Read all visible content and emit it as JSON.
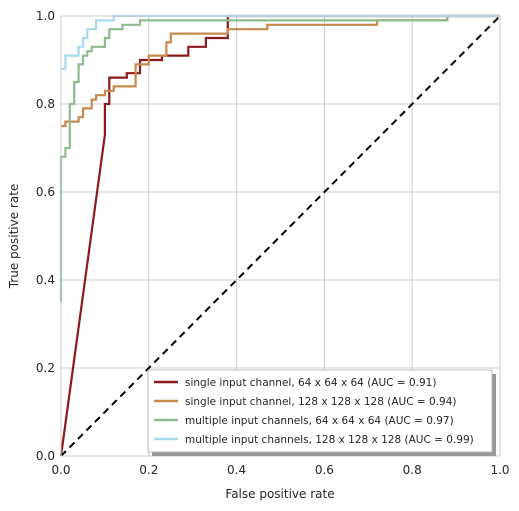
{
  "chart_data": {
    "type": "line",
    "xlabel": "False positive rate",
    "ylabel": "True positive rate",
    "xlim": [
      0,
      1
    ],
    "ylim": [
      0,
      1
    ],
    "xticks": [
      "0.0",
      "0.2",
      "0.4",
      "0.6",
      "0.8",
      "1.0"
    ],
    "yticks": [
      "0.0",
      "0.2",
      "0.4",
      "0.6",
      "0.8",
      "1.0"
    ],
    "grid": true,
    "legend_position": "bottom-right",
    "diagonal": {
      "style": "dashed",
      "color": "#000000",
      "points": [
        [
          0,
          0
        ],
        [
          1,
          1
        ]
      ]
    },
    "series": [
      {
        "name": "single input channel, 64 x 64 x 64 (AUC = 0.91)",
        "color": "#8b1a1a",
        "points": [
          [
            0,
            0
          ],
          [
            0.1,
            0.73
          ],
          [
            0.1,
            0.8
          ],
          [
            0.11,
            0.8
          ],
          [
            0.11,
            0.86
          ],
          [
            0.15,
            0.86
          ],
          [
            0.15,
            0.87
          ],
          [
            0.18,
            0.87
          ],
          [
            0.18,
            0.9
          ],
          [
            0.23,
            0.9
          ],
          [
            0.23,
            0.91
          ],
          [
            0.29,
            0.91
          ],
          [
            0.29,
            0.93
          ],
          [
            0.33,
            0.93
          ],
          [
            0.33,
            0.95
          ],
          [
            0.38,
            0.95
          ],
          [
            0.38,
            1.0
          ],
          [
            1.0,
            1.0
          ]
        ]
      },
      {
        "name": "single input channel, 128 x 128 x 128 (AUC = 0.94)",
        "color": "#c58a4c",
        "points": [
          [
            0,
            0.75
          ],
          [
            0.01,
            0.75
          ],
          [
            0.01,
            0.76
          ],
          [
            0.04,
            0.76
          ],
          [
            0.04,
            0.77
          ],
          [
            0.05,
            0.77
          ],
          [
            0.05,
            0.79
          ],
          [
            0.07,
            0.79
          ],
          [
            0.07,
            0.81
          ],
          [
            0.08,
            0.81
          ],
          [
            0.08,
            0.82
          ],
          [
            0.1,
            0.82
          ],
          [
            0.1,
            0.83
          ],
          [
            0.12,
            0.83
          ],
          [
            0.12,
            0.84
          ],
          [
            0.17,
            0.84
          ],
          [
            0.17,
            0.89
          ],
          [
            0.2,
            0.89
          ],
          [
            0.2,
            0.91
          ],
          [
            0.24,
            0.91
          ],
          [
            0.24,
            0.94
          ],
          [
            0.25,
            0.94
          ],
          [
            0.25,
            0.96
          ],
          [
            0.38,
            0.96
          ],
          [
            0.38,
            0.97
          ],
          [
            0.47,
            0.97
          ],
          [
            0.47,
            0.98
          ],
          [
            0.72,
            0.98
          ],
          [
            0.72,
            0.99
          ],
          [
            0.88,
            0.99
          ],
          [
            0.88,
            1.0
          ],
          [
            1.0,
            1.0
          ]
        ]
      },
      {
        "name": "multiple input channels, 64 x 64 x 64 (AUC = 0.97)",
        "color": "#8fbc8f",
        "points": [
          [
            0,
            0.35
          ],
          [
            0,
            0.68
          ],
          [
            0.01,
            0.68
          ],
          [
            0.01,
            0.7
          ],
          [
            0.02,
            0.7
          ],
          [
            0.02,
            0.8
          ],
          [
            0.03,
            0.8
          ],
          [
            0.03,
            0.85
          ],
          [
            0.04,
            0.85
          ],
          [
            0.04,
            0.89
          ],
          [
            0.05,
            0.89
          ],
          [
            0.05,
            0.91
          ],
          [
            0.06,
            0.91
          ],
          [
            0.06,
            0.92
          ],
          [
            0.07,
            0.92
          ],
          [
            0.07,
            0.93
          ],
          [
            0.1,
            0.93
          ],
          [
            0.1,
            0.95
          ],
          [
            0.11,
            0.95
          ],
          [
            0.11,
            0.97
          ],
          [
            0.14,
            0.97
          ],
          [
            0.14,
            0.98
          ],
          [
            0.18,
            0.98
          ],
          [
            0.18,
            0.99
          ],
          [
            0.88,
            0.99
          ],
          [
            0.88,
            1.0
          ],
          [
            1.0,
            1.0
          ]
        ]
      },
      {
        "name": "multiple input channels, 128 x 128 x 128 (AUC = 0.99)",
        "color": "#a6d8f0",
        "points": [
          [
            0,
            0.88
          ],
          [
            0.01,
            0.88
          ],
          [
            0.01,
            0.91
          ],
          [
            0.04,
            0.91
          ],
          [
            0.04,
            0.93
          ],
          [
            0.05,
            0.93
          ],
          [
            0.05,
            0.95
          ],
          [
            0.06,
            0.95
          ],
          [
            0.06,
            0.97
          ],
          [
            0.08,
            0.97
          ],
          [
            0.08,
            0.99
          ],
          [
            0.12,
            0.99
          ],
          [
            0.12,
            1.0
          ],
          [
            1.0,
            1.0
          ]
        ]
      }
    ]
  }
}
